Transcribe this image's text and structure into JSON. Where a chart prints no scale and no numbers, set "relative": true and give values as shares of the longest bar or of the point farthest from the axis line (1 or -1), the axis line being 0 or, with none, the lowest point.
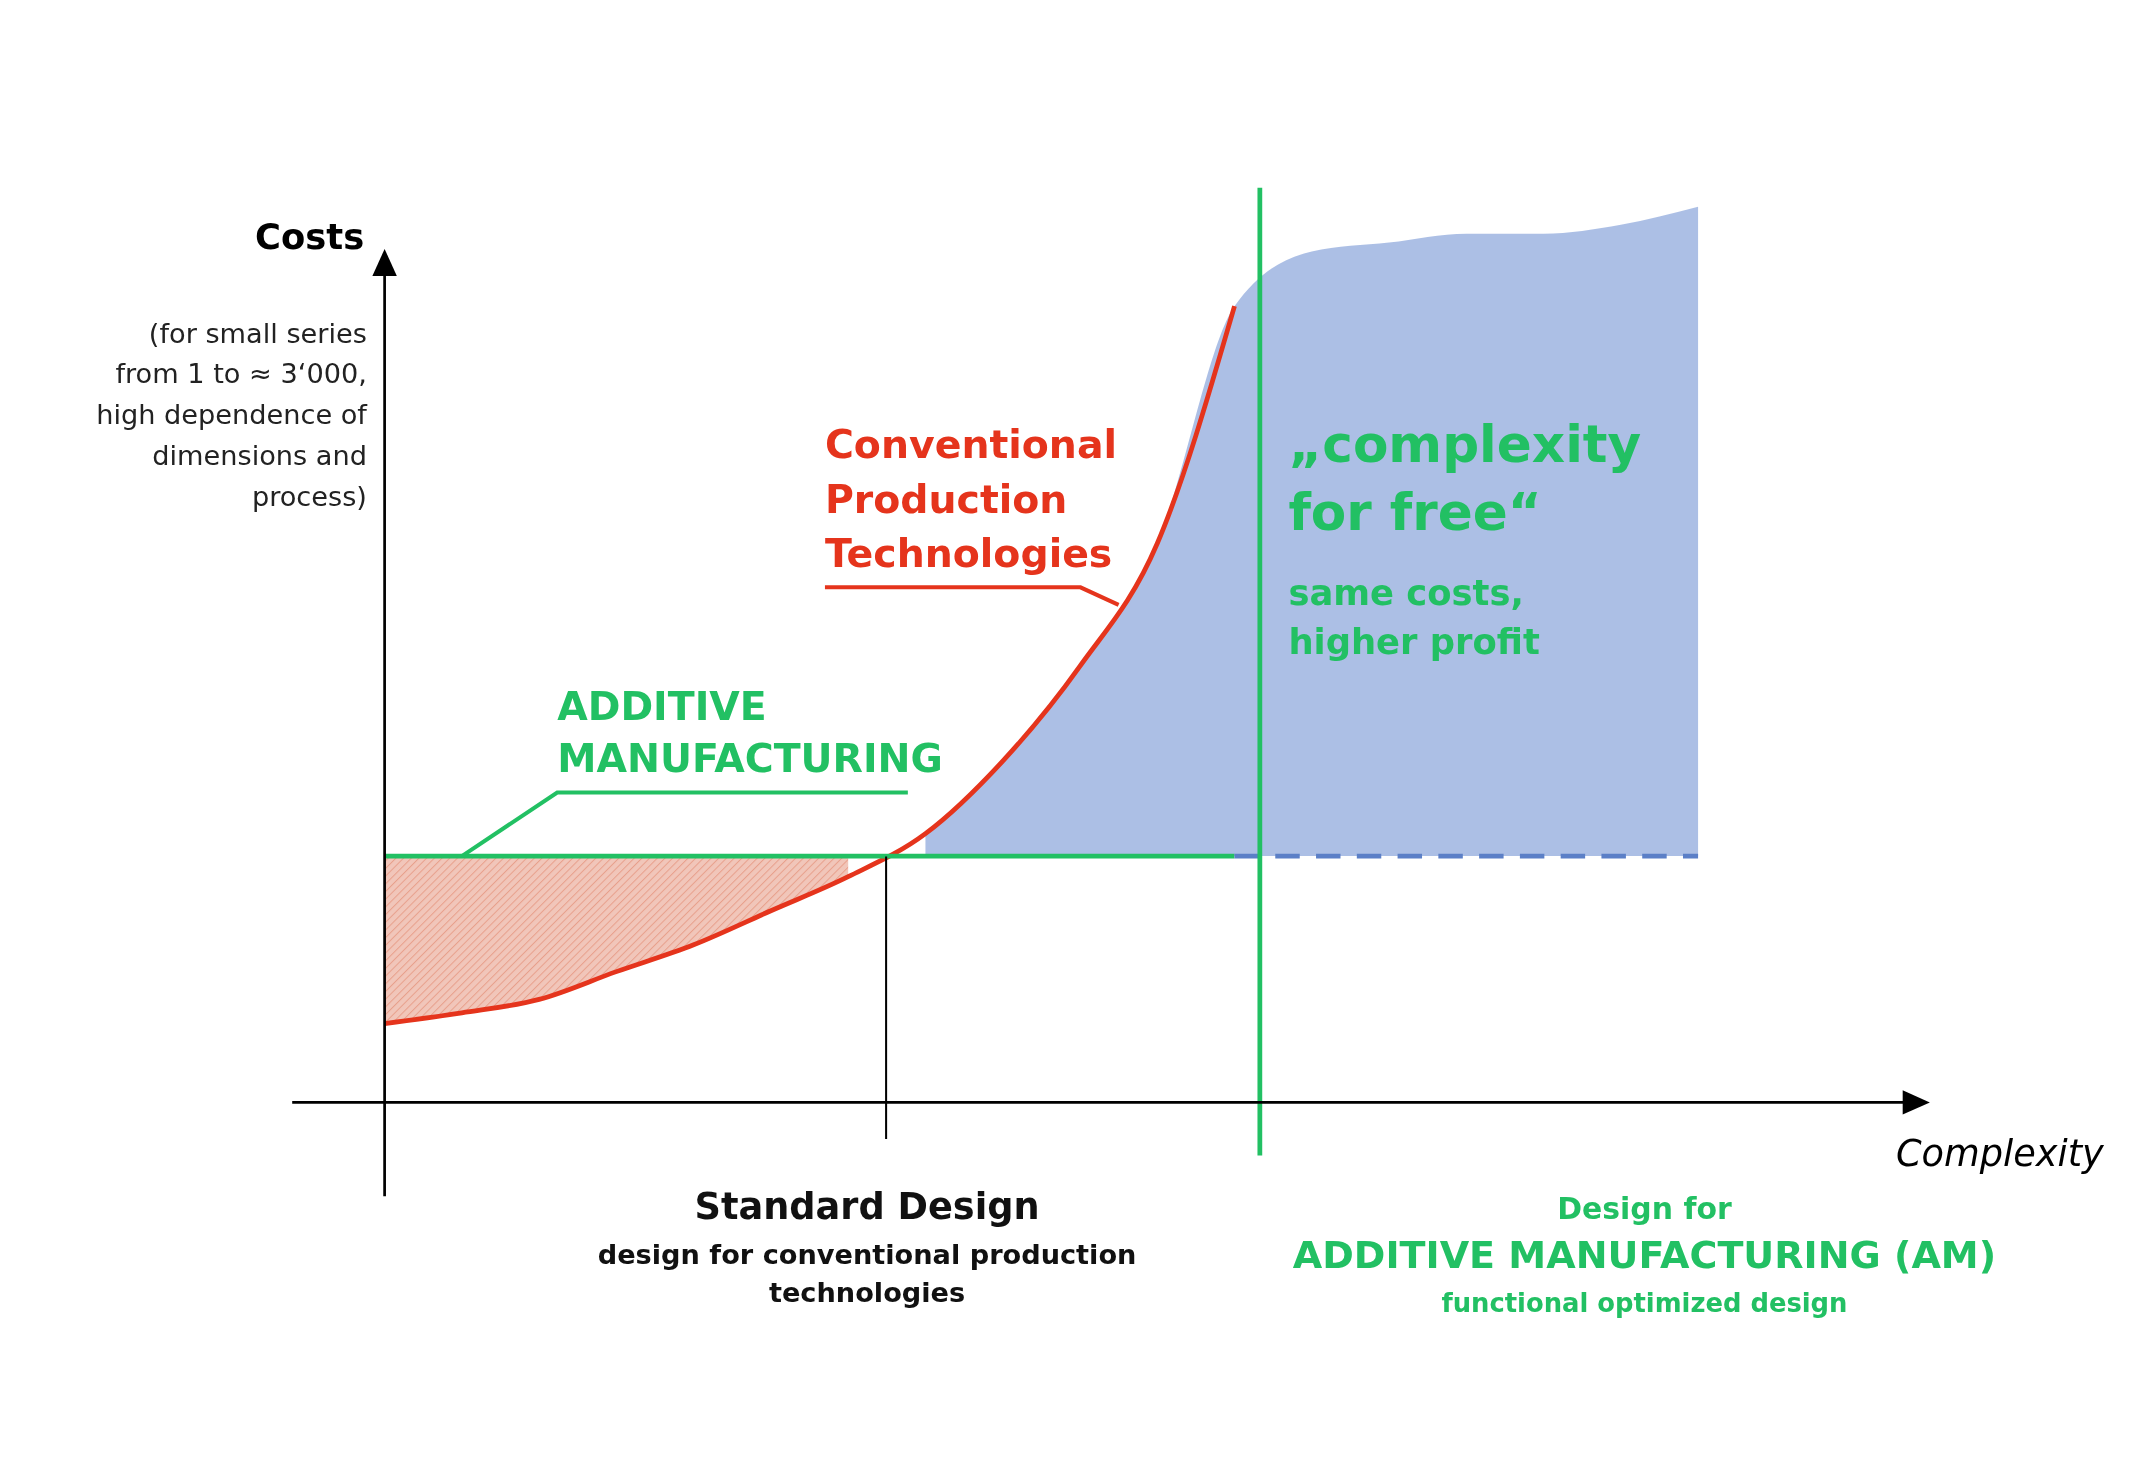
{
  "chart_data": {
    "type": "line",
    "relative": true,
    "xlabel": "Complexity",
    "ylabel": "Costs",
    "categories": [
      null,
      null,
      null,
      null,
      null,
      null,
      null,
      null,
      null,
      null,
      null,
      null,
      null,
      null,
      null,
      null,
      null,
      null,
      null,
      null,
      null
    ],
    "series": [
      {
        "type": "area",
        "color": "#e8a08c",
        "values": [
          0.275,
          0.275,
          0.275,
          0.275,
          0.275,
          0.275,
          0.275,
          null,
          null,
          null,
          null,
          null,
          null,
          null,
          null,
          null,
          null,
          null,
          null,
          null,
          null
        ]
      },
      {
        "type": "area",
        "color": "#9db4e0",
        "values": [
          null,
          null,
          null,
          null,
          null,
          null,
          null,
          0.3,
          0.381,
          0.487,
          0.624,
          0.889,
          0.95,
          0.96,
          0.97,
          0.97,
          0.98,
          1.0,
          null,
          null,
          null
        ]
      },
      {
        "name": "Conventional Production Technologies",
        "color": "#e5341c",
        "values": [
          0.088,
          0.1,
          0.115,
          0.146,
          0.176,
          0.214,
          0.252,
          0.3,
          0.381,
          0.487,
          0.624,
          0.889,
          null,
          null,
          null,
          null,
          null,
          null,
          null,
          null,
          null
        ]
      },
      {
        "name": "ADDITIVE MANUFACTURING",
        "color": "#22c063",
        "values": [
          0.275,
          0.275,
          0.275,
          0.275,
          0.275,
          0.275,
          0.275,
          0.275,
          0.275,
          0.275,
          0.275,
          0.275,
          null,
          null,
          null,
          null,
          null,
          null,
          null,
          null,
          null
        ]
      },
      {
        "color": "#5b7fc7",
        "line_style": "dashed",
        "values": [
          null,
          null,
          null,
          null,
          null,
          null,
          null,
          null,
          null,
          null,
          null,
          0.275,
          0.275,
          0.275,
          0.275,
          0.275,
          0.275,
          0.275,
          null,
          null,
          null
        ]
      }
    ],
    "annotations": [
      "„complexity for free“",
      "same costs, higher profit",
      "(for small series from 1 to ≈ 3‘000, high dependence of dimensions and process)",
      "Standard Design",
      "design for conventional production technologies",
      "Design for",
      "ADDITIVE MANUFACTURING (AM)",
      "functional optimized design"
    ]
  }
}
